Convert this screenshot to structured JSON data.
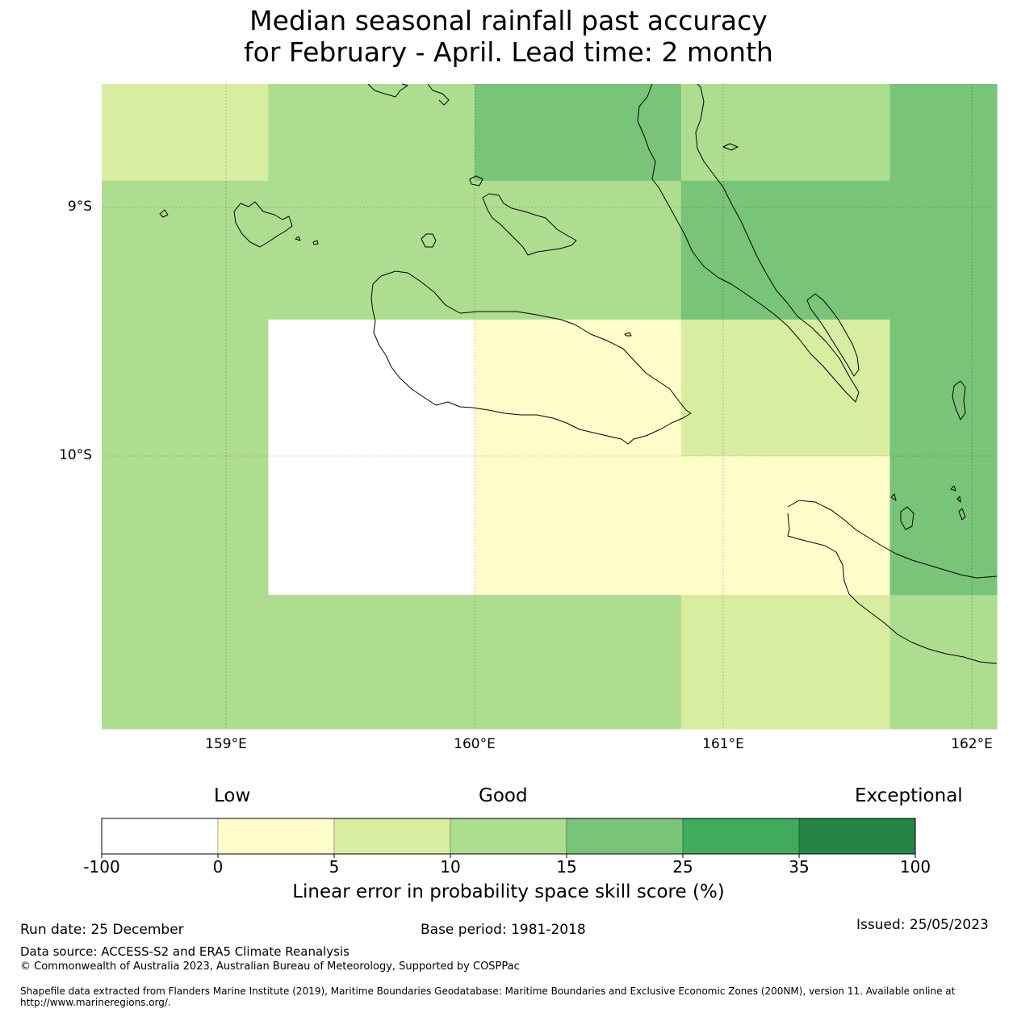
{
  "title": {
    "line1": "Median seasonal rainfall past accuracy",
    "line2": "for February - April. Lead time: 2 month"
  },
  "map": {
    "lat_labels": [
      "9°S",
      "10°S"
    ],
    "lon_labels": [
      "159°E",
      "160°E",
      "161°E",
      "162°E"
    ]
  },
  "legend": {
    "categories": [
      "Low",
      "Good",
      "Exceptional"
    ],
    "ticks": [
      "-100",
      "0",
      "5",
      "10",
      "15",
      "25",
      "35",
      "100"
    ],
    "colors": [
      "#ffffff",
      "#fefdc9",
      "#d8eda0",
      "#addd8e",
      "#78c478",
      "#41ab5d",
      "#238443"
    ],
    "title": "Linear error in probability space skill score (%)"
  },
  "chart_data": {
    "type": "heatmap",
    "title": "Median seasonal rainfall past accuracy for February - April. Lead time: 2 month",
    "x_edges_deg_e": [
      158.5,
      159.17,
      160.0,
      160.83,
      161.67,
      162.1
    ],
    "y_edges_deg_s": [
      8.5,
      8.89,
      9.45,
      10.0,
      10.56,
      11.1
    ],
    "category_codes": "0:-100..0, 1:0..5, 2:5..10, 3:10..15, 4:15..25, 5:25..35, 6:35..100",
    "cells": [
      [
        2,
        3,
        4,
        3,
        4
      ],
      [
        3,
        3,
        3,
        4,
        4
      ],
      [
        3,
        0,
        1,
        2,
        4
      ],
      [
        3,
        0,
        1,
        1,
        4
      ],
      [
        3,
        3,
        3,
        2,
        3
      ]
    ]
  },
  "footer": {
    "run_date": "Run date: 25 December",
    "base_period": "Base period: 1981-2018",
    "issued": "Issued: 25/05/2023",
    "data_source": "Data source: ACCESS-S2 and ERA5 Climate Reanalysis",
    "copyright": "© Commonwealth of Australia 2023, Australian Bureau of Meteorology, Supported by COSPPac",
    "shapefile_line1": "Shapefile data extracted from Flanders Marine Institute (2019), Maritime Boundaries Geodatabase: Maritime Boundaries and Exclusive Economic Zones (200NM), version 11. Available online at",
    "shapefile_line2": "http://www.marineregions.org/."
  }
}
